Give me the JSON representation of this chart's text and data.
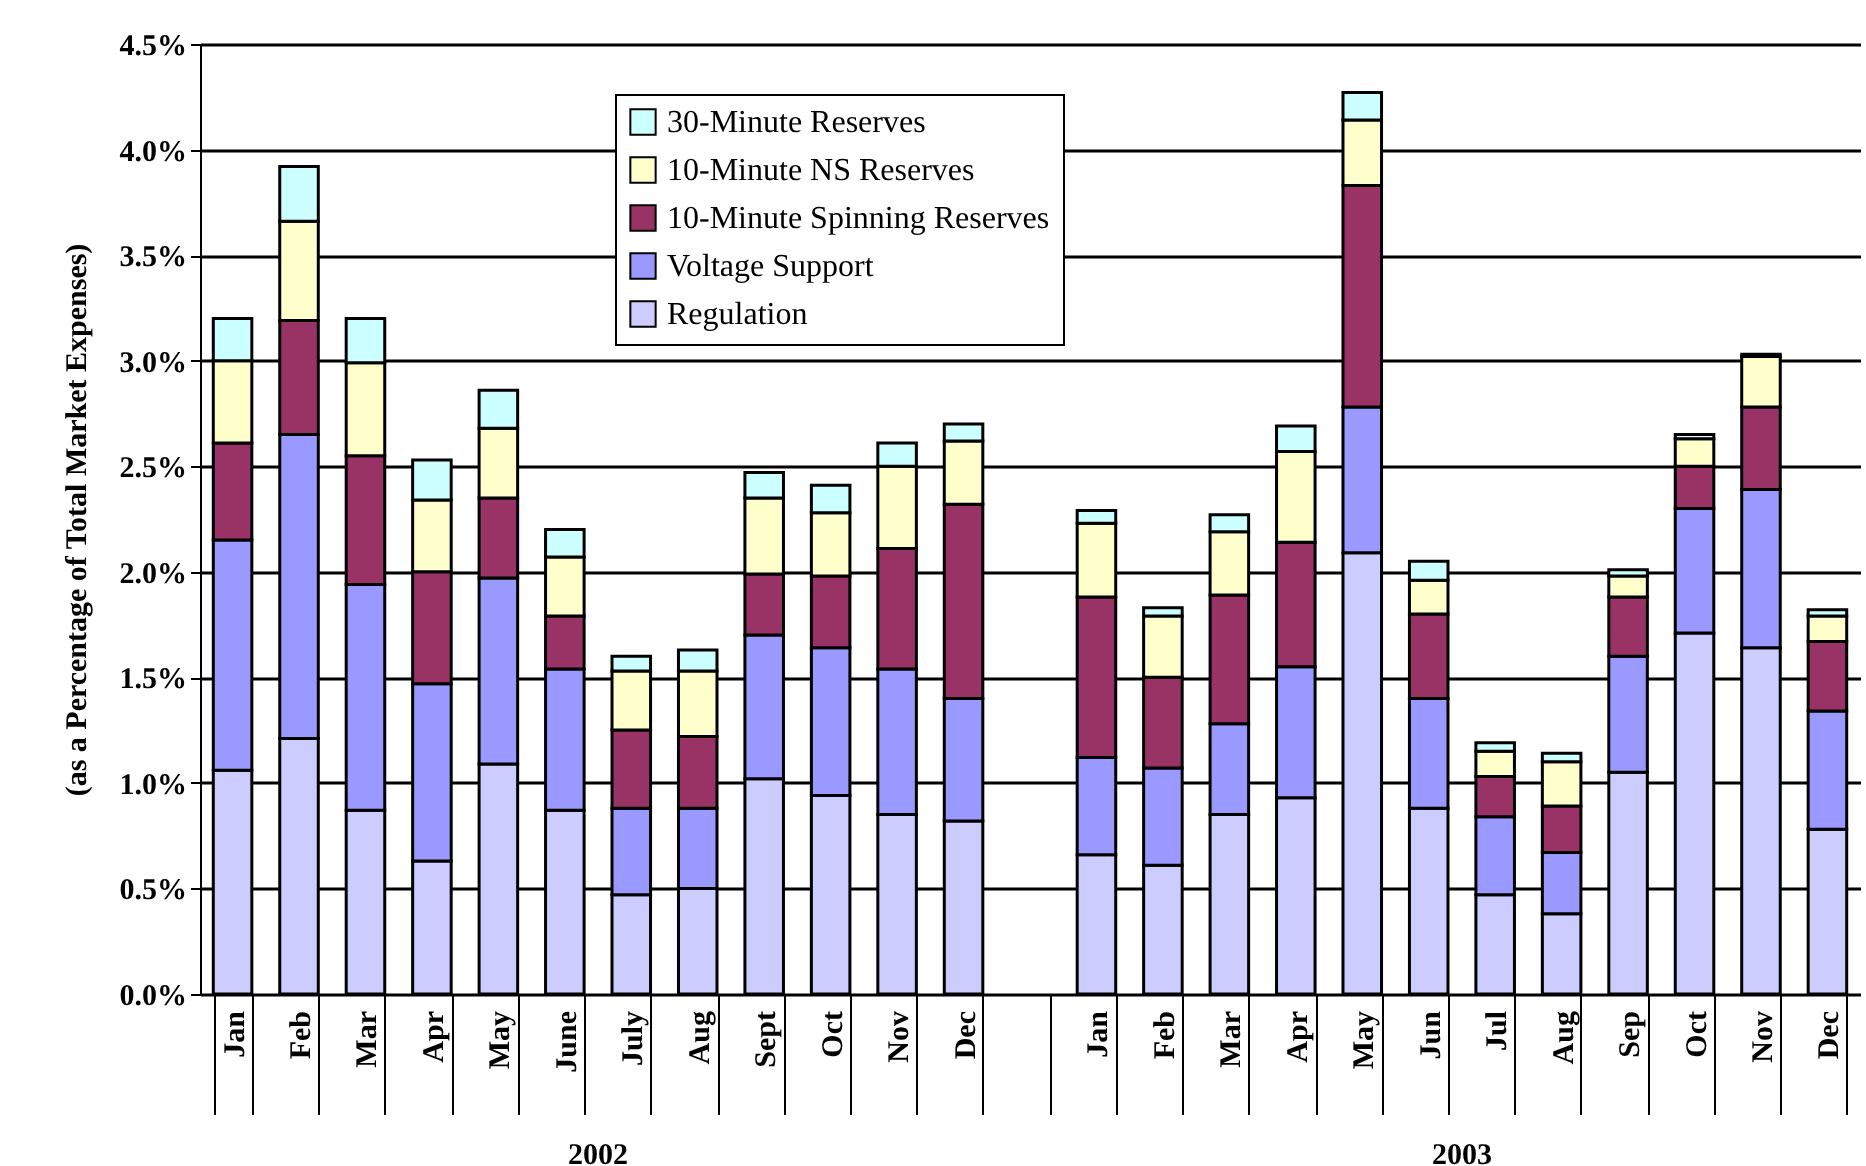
{
  "chart_data": {
    "type": "bar",
    "stacked": true,
    "ylabel": "(as a Percentage of Total Market Expenses)",
    "categories": [
      "Jan",
      "Feb",
      "Mar",
      "Apr",
      "May",
      "June",
      "July",
      "Aug",
      "Sept",
      "Oct",
      "Nov",
      "Dec",
      null,
      "Jan",
      "Feb",
      "Mar",
      "Apr",
      "May",
      "Jun",
      "Jul",
      "Aug",
      "Sep",
      "Oct",
      "Nov",
      "Dec"
    ],
    "series": [
      {
        "name": "Regulation",
        "color": "#ccccff",
        "values": [
          1.06,
          1.21,
          0.87,
          0.63,
          1.09,
          0.87,
          0.47,
          0.5,
          1.02,
          0.94,
          0.85,
          0.82,
          null,
          0.66,
          0.61,
          0.85,
          0.93,
          2.09,
          0.88,
          0.47,
          0.38,
          1.05,
          1.71,
          1.64,
          0.78
        ]
      },
      {
        "name": "Voltage Support",
        "color": "#9999ff",
        "values": [
          1.09,
          1.44,
          1.07,
          0.84,
          0.88,
          0.67,
          0.41,
          0.38,
          0.68,
          0.7,
          0.69,
          0.58,
          null,
          0.46,
          0.46,
          0.43,
          0.62,
          0.69,
          0.52,
          0.37,
          0.29,
          0.55,
          0.59,
          0.75,
          0.56
        ]
      },
      {
        "name": "10-Minute Spinning Reserves",
        "color": "#993366",
        "values": [
          0.46,
          0.54,
          0.61,
          0.53,
          0.38,
          0.25,
          0.37,
          0.34,
          0.29,
          0.34,
          0.57,
          0.92,
          null,
          0.76,
          0.43,
          0.61,
          0.59,
          1.05,
          0.4,
          0.19,
          0.22,
          0.28,
          0.2,
          0.39,
          0.33
        ]
      },
      {
        "name": "10-Minute NS Reserves",
        "color": "#ffffcc",
        "values": [
          0.39,
          0.47,
          0.44,
          0.34,
          0.33,
          0.28,
          0.28,
          0.31,
          0.36,
          0.3,
          0.39,
          0.3,
          null,
          0.35,
          0.29,
          0.3,
          0.43,
          0.31,
          0.16,
          0.12,
          0.21,
          0.1,
          0.13,
          0.24,
          0.12
        ]
      },
      {
        "name": "30-Minute Reserves",
        "color": "#ccffff",
        "values": [
          0.2,
          0.26,
          0.21,
          0.19,
          0.18,
          0.13,
          0.07,
          0.1,
          0.12,
          0.13,
          0.11,
          0.08,
          null,
          0.06,
          0.04,
          0.08,
          0.12,
          0.13,
          0.09,
          0.04,
          0.04,
          0.03,
          0.02,
          0.01,
          0.03
        ]
      }
    ],
    "ylim": [
      0,
      4.5
    ],
    "yticks": [
      {
        "value": 0,
        "label": "0.0%"
      },
      {
        "value": 0.5,
        "label": "0.5%"
      },
      {
        "value": 1,
        "label": "1.0%"
      },
      {
        "value": 1.5,
        "label": "1.5%"
      },
      {
        "value": 2,
        "label": "2.0%"
      },
      {
        "value": 2.5,
        "label": "2.5%"
      },
      {
        "value": 3,
        "label": "3.0%"
      },
      {
        "value": 3.5,
        "label": "3.5%"
      },
      {
        "value": 4,
        "label": "4.0%"
      },
      {
        "value": 4.5,
        "label": "4.5%"
      }
    ],
    "grid": "y",
    "legend": "top",
    "annotations": [
      "2002",
      "2003"
    ]
  }
}
